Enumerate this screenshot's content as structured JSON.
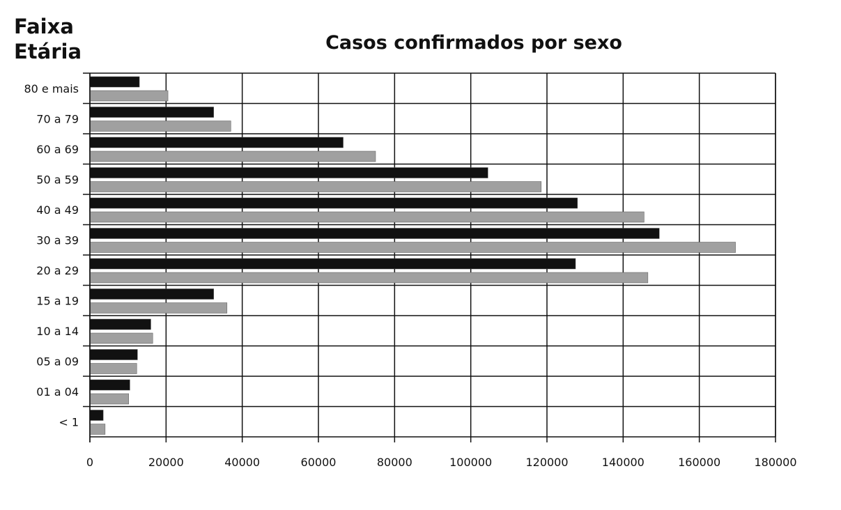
{
  "chart_data": {
    "type": "bar",
    "orientation": "horizontal",
    "title": "Casos confirmados por sexo",
    "ylabel": "Faixa\nEtária",
    "xlabel": "",
    "xlim": [
      0,
      180000
    ],
    "x_ticks": [
      "0",
      "20000",
      "40000",
      "60000",
      "80000",
      "100000",
      "120000",
      "140000",
      "160000",
      "180000"
    ],
    "grid": true,
    "categories": [
      "80 e mais",
      "70 a 79",
      "60 a 69",
      "50 a 59",
      "40 a 49",
      "30 a 39",
      "20 a 29",
      "15 a 19",
      "10 a 14",
      "05 a 09",
      "01 a 04",
      "< 1"
    ],
    "series": [
      {
        "color": "#111111",
        "values": [
          13000,
          32500,
          66500,
          104500,
          128000,
          149500,
          127500,
          32500,
          16000,
          12500,
          10500,
          3500
        ]
      },
      {
        "color": "#a0a0a0",
        "values": [
          20500,
          37000,
          75000,
          118500,
          145500,
          169500,
          146500,
          36000,
          16500,
          12300,
          10200,
          4000
        ]
      }
    ]
  }
}
